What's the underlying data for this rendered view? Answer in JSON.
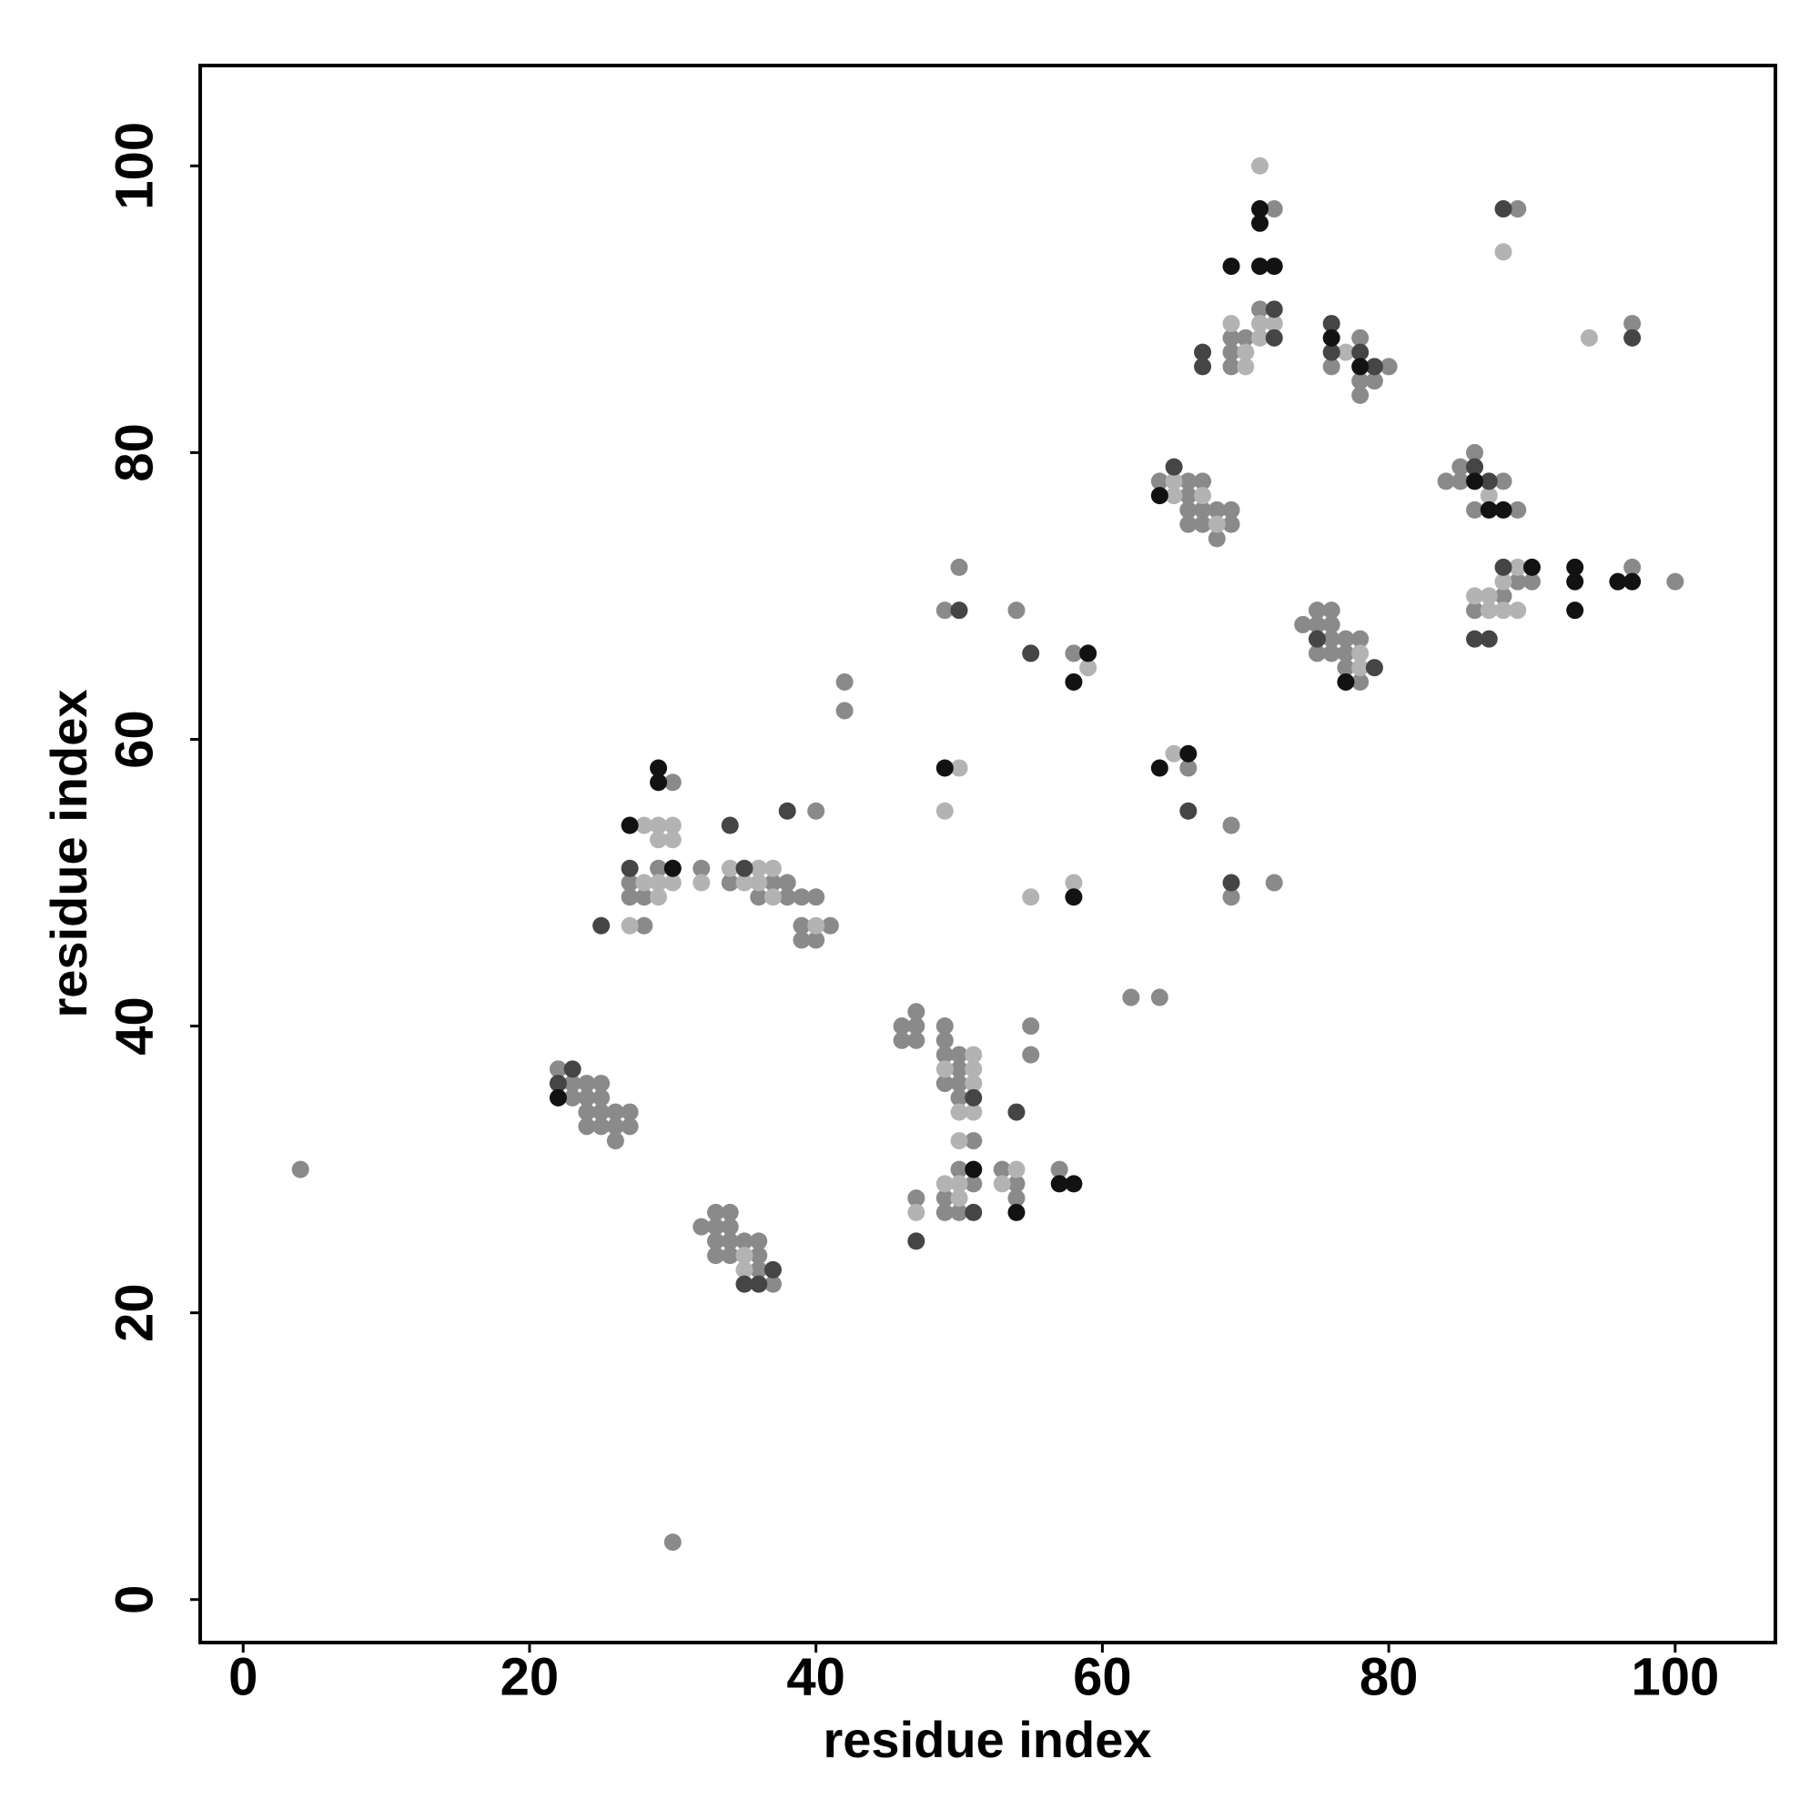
{
  "chart_data": {
    "type": "scatter",
    "xlabel": "residue index",
    "ylabel": "residue index",
    "xlim": [
      -3,
      107
    ],
    "ylim": [
      -3,
      107
    ],
    "xticks": [
      0,
      20,
      40,
      60,
      80,
      100
    ],
    "yticks": [
      0,
      20,
      40,
      60,
      80,
      100
    ],
    "series": [
      {
        "color": "#8a8a8a",
        "x": [
          4,
          30,
          22,
          23,
          23,
          24,
          25,
          24,
          25,
          24,
          25,
          26,
          27,
          24,
          25,
          26,
          27,
          26,
          33,
          34,
          32,
          33,
          34,
          33,
          34,
          35,
          36,
          33,
          34,
          36,
          36,
          37,
          28,
          27,
          28,
          27,
          29,
          30,
          32,
          34,
          37,
          38,
          36,
          38,
          39,
          40,
          39,
          41,
          39,
          40,
          40,
          42,
          42,
          46,
          47,
          47,
          46,
          47,
          49,
          49,
          49,
          50,
          50,
          49,
          50,
          50,
          51,
          50,
          51,
          49,
          49,
          50,
          47,
          53,
          54,
          54,
          55,
          55,
          57,
          49,
          50,
          54,
          58,
          62,
          64,
          66,
          69,
          69,
          72,
          64,
          66,
          67,
          66,
          66,
          67,
          68,
          66,
          67,
          69,
          69,
          68,
          72,
          71,
          69,
          70,
          69,
          69,
          78,
          76,
          80,
          78,
          79,
          78,
          74,
          75,
          76,
          75,
          76,
          76,
          77,
          78,
          75,
          76,
          77,
          77,
          78,
          84,
          85,
          85,
          86,
          88,
          86,
          89,
          86,
          88,
          89,
          90,
          89,
          97,
          97,
          100
        ],
        "y": [
          30,
          4,
          37,
          35,
          36,
          36,
          36,
          35,
          35,
          34,
          34,
          34,
          34,
          33,
          33,
          33,
          33,
          32,
          27,
          27,
          26,
          26,
          26,
          25,
          25,
          25,
          25,
          24,
          24,
          24,
          23,
          22,
          47,
          49,
          49,
          50,
          51,
          57,
          51,
          50,
          50,
          50,
          49,
          49,
          49,
          49,
          47,
          47,
          46,
          46,
          55,
          64,
          62,
          40,
          40,
          41,
          39,
          39,
          40,
          39,
          38,
          38,
          37,
          36,
          36,
          35,
          32,
          30,
          29,
          28,
          27,
          27,
          28,
          30,
          29,
          28,
          38,
          40,
          30,
          69,
          72,
          69,
          66,
          42,
          42,
          58,
          54,
          49,
          50,
          78,
          78,
          78,
          77,
          76,
          76,
          76,
          75,
          75,
          76,
          75,
          74,
          97,
          90,
          88,
          88,
          87,
          86,
          88,
          86,
          86,
          85,
          85,
          84,
          68,
          69,
          69,
          68,
          68,
          67,
          67,
          67,
          66,
          66,
          66,
          65,
          64,
          78,
          78,
          79,
          80,
          78,
          76,
          76,
          69,
          70,
          71,
          71,
          97,
          89,
          72,
          71
        ]
      },
      {
        "color": "#b3b3b3",
        "x": [
          35,
          35,
          27,
          29,
          28,
          29,
          30,
          28,
          29,
          30,
          29,
          30,
          32,
          34,
          35,
          36,
          37,
          36,
          37,
          40,
          51,
          49,
          51,
          51,
          50,
          51,
          50,
          49,
          50,
          50,
          47,
          54,
          53,
          50,
          49,
          59,
          55,
          58,
          65,
          65,
          65,
          67,
          68,
          71,
          69,
          71,
          72,
          71,
          70,
          70,
          77,
          78,
          78,
          87,
          86,
          87,
          87,
          88,
          89,
          88,
          89,
          88,
          94
        ],
        "y": [
          24,
          23,
          47,
          49,
          50,
          50,
          50,
          54,
          54,
          54,
          53,
          53,
          50,
          51,
          50,
          51,
          51,
          50,
          49,
          47,
          38,
          37,
          37,
          36,
          34,
          34,
          32,
          29,
          29,
          28,
          27,
          30,
          29,
          58,
          55,
          65,
          49,
          50,
          59,
          78,
          77,
          77,
          75,
          100,
          89,
          89,
          89,
          88,
          87,
          86,
          87,
          66,
          65,
          77,
          70,
          70,
          69,
          69,
          69,
          71,
          72,
          94,
          88
        ]
      },
      {
        "color": "#454545",
        "x": [
          23,
          22,
          37,
          35,
          36,
          25,
          27,
          35,
          34,
          38,
          51,
          51,
          47,
          54,
          50,
          55,
          66,
          69,
          65,
          72,
          72,
          67,
          67,
          76,
          76,
          78,
          79,
          75,
          79,
          86,
          87,
          88,
          86,
          87,
          88,
          97
        ],
        "y": [
          37,
          36,
          23,
          22,
          22,
          47,
          51,
          51,
          54,
          55,
          35,
          27,
          25,
          34,
          69,
          66,
          55,
          50,
          79,
          90,
          88,
          87,
          86,
          89,
          87,
          87,
          86,
          67,
          65,
          79,
          78,
          72,
          67,
          67,
          97,
          88
        ]
      },
      {
        "color": "#121212",
        "x": [
          22,
          30,
          27,
          29,
          29,
          51,
          54,
          57,
          58,
          49,
          59,
          58,
          58,
          64,
          66,
          64,
          71,
          71,
          69,
          71,
          72,
          76,
          78,
          77,
          86,
          87,
          88,
          90,
          93,
          93,
          93,
          96,
          97
        ],
        "y": [
          35,
          51,
          54,
          57,
          58,
          30,
          27,
          29,
          29,
          58,
          66,
          64,
          49,
          58,
          59,
          77,
          97,
          96,
          93,
          93,
          93,
          88,
          86,
          64,
          78,
          76,
          76,
          72,
          72,
          71,
          69,
          71,
          71
        ]
      }
    ]
  }
}
